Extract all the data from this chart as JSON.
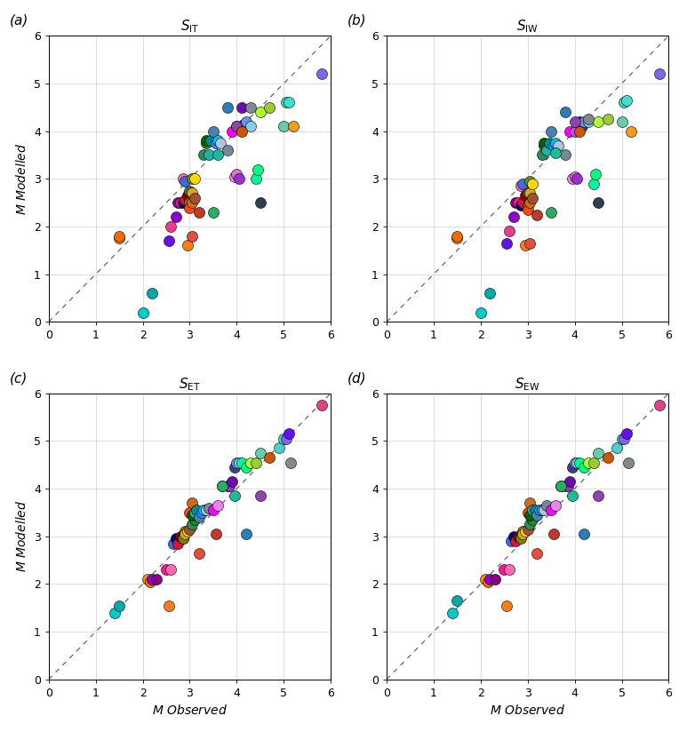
{
  "titles": [
    "$\\mathit{S}_{\\mathrm{IT}}$",
    "$\\mathit{S}_{\\mathrm{IW}}$",
    "$\\mathit{S}_{\\mathrm{ET}}$",
    "$\\mathit{S}_{\\mathrm{EW}}$"
  ],
  "panel_labels": [
    "(a)",
    "(b)",
    "(c)",
    "(d)"
  ],
  "xlabel": "$\\mathit{M}$ Observed",
  "ylabel": "$\\mathit{M}$ Modelled",
  "xlim": [
    0,
    6
  ],
  "ylim": [
    0,
    6
  ],
  "xticks": [
    0,
    1,
    2,
    3,
    4,
    5,
    6
  ],
  "yticks": [
    0,
    1,
    2,
    3,
    4,
    5,
    6
  ],
  "marker_size": 75,
  "color_list": [
    "#00CCCC",
    "#00AAAA",
    "#FF8C00",
    "#FF6600",
    "#9400D3",
    "#8B008B",
    "#FF1493",
    "#FF69B4",
    "#4169E1",
    "#000080",
    "#DC143C",
    "#8B0000",
    "#556B2F",
    "#6B8E23",
    "#808000",
    "#DAA520",
    "#FFD700",
    "#FF4500",
    "#D2691E",
    "#A0522D",
    "#2E8B57",
    "#228B22",
    "#006400",
    "#20B2AA",
    "#008B8B",
    "#4682B4",
    "#1E90FF",
    "#00BFFF",
    "#B0C4DE",
    "#778899",
    "#FF00FF",
    "#EE82EE",
    "#DA70D6",
    "#BA55D3",
    "#9932CC",
    "#6A0DAD",
    "#483D8B",
    "#6495ED",
    "#87CEEB",
    "#00FA9A",
    "#00FF7F",
    "#ADFF2F",
    "#9ACD32",
    "#66CDAA",
    "#48D1CC",
    "#40E0D0",
    "#7B68EE",
    "#6610F2",
    "#E83E8C",
    "#FD7E14",
    "#E74C3C",
    "#C0392B",
    "#27AE60",
    "#1ABC9C",
    "#2980B9",
    "#8E44AD",
    "#D35400",
    "#7F8C8D",
    "#2C3E50",
    "#F39C12",
    "#16A085",
    "#1E8449",
    "#145A32",
    "#1A5276",
    "#4A235A",
    "#6E2F1A",
    "#B7950B",
    "#784212",
    "#1B4F72",
    "#943126",
    "#1D8348",
    "#117A65",
    "#BDC3C7",
    "#85929E",
    "#5D6D7E",
    "#CD853F",
    "#DEB887",
    "#F4A460",
    "#BC8F8F",
    "#FF7F50"
  ],
  "panel_a_x": [
    2.0,
    2.2,
    1.5,
    1.5,
    2.7,
    2.75,
    2.8,
    2.85,
    2.9,
    2.85,
    2.9,
    2.95,
    3.0,
    3.05,
    3.0,
    3.05,
    3.1,
    3.0,
    3.05,
    3.1,
    3.3,
    3.35,
    3.35,
    3.4,
    3.45,
    3.5,
    3.55,
    3.6,
    3.65,
    3.8,
    3.9,
    3.95,
    4.0,
    4.0,
    4.05,
    4.1,
    4.15,
    4.2,
    4.3,
    4.4,
    4.45,
    4.5,
    4.7,
    5.0,
    5.05,
    5.1,
    5.8,
    2.55,
    2.6,
    2.95,
    3.05,
    3.2,
    3.5,
    3.6,
    3.8,
    4.0,
    4.1,
    4.3,
    4.5,
    5.2
  ],
  "panel_a_y": [
    0.2,
    0.6,
    1.75,
    1.8,
    2.2,
    2.5,
    2.5,
    3.0,
    2.95,
    2.5,
    2.55,
    2.65,
    2.75,
    3.0,
    2.5,
    2.7,
    3.0,
    2.4,
    2.5,
    2.6,
    3.5,
    3.75,
    3.8,
    3.5,
    3.8,
    4.0,
    3.75,
    3.8,
    3.75,
    3.6,
    4.0,
    3.05,
    3.1,
    4.1,
    3.0,
    4.5,
    4.15,
    4.2,
    4.1,
    3.0,
    3.2,
    4.4,
    4.5,
    4.1,
    4.6,
    4.6,
    5.2,
    1.7,
    2.0,
    1.6,
    1.8,
    2.3,
    2.3,
    3.5,
    4.5,
    4.1,
    4.0,
    4.5,
    2.5,
    4.1
  ],
  "panel_b_x": [
    2.0,
    2.2,
    1.5,
    1.5,
    2.7,
    2.75,
    2.8,
    2.85,
    2.9,
    2.85,
    2.9,
    2.95,
    3.0,
    3.05,
    3.0,
    3.05,
    3.1,
    3.0,
    3.05,
    3.1,
    3.3,
    3.35,
    3.35,
    3.4,
    3.45,
    3.5,
    3.55,
    3.6,
    3.65,
    3.8,
    3.9,
    3.95,
    4.0,
    4.0,
    4.05,
    4.1,
    4.15,
    4.2,
    4.3,
    4.4,
    4.45,
    4.5,
    4.7,
    5.0,
    5.05,
    5.1,
    5.8,
    2.55,
    2.6,
    2.95,
    3.05,
    3.2,
    3.5,
    3.6,
    3.8,
    4.0,
    4.1,
    4.3,
    4.5,
    5.2
  ],
  "panel_b_y": [
    0.2,
    0.6,
    1.75,
    1.8,
    2.2,
    2.5,
    2.5,
    2.85,
    2.9,
    2.45,
    2.5,
    2.65,
    2.7,
    2.95,
    2.45,
    2.7,
    2.9,
    2.35,
    2.5,
    2.6,
    3.5,
    3.7,
    3.75,
    3.6,
    3.75,
    4.0,
    3.7,
    3.75,
    3.7,
    3.5,
    4.0,
    3.0,
    3.05,
    4.0,
    3.0,
    4.2,
    4.1,
    4.2,
    4.2,
    2.9,
    3.1,
    4.2,
    4.25,
    4.2,
    4.6,
    4.65,
    5.2,
    1.65,
    1.9,
    1.6,
    1.65,
    2.25,
    2.3,
    3.55,
    4.4,
    4.2,
    4.0,
    4.25,
    2.5,
    4.0
  ],
  "panel_c_x": [
    1.4,
    1.5,
    2.1,
    2.15,
    2.2,
    2.3,
    2.5,
    2.6,
    2.65,
    2.7,
    2.75,
    2.8,
    2.85,
    2.9,
    2.85,
    2.9,
    2.95,
    3.0,
    3.05,
    3.0,
    3.05,
    3.1,
    3.05,
    3.1,
    3.15,
    3.2,
    3.25,
    3.3,
    3.35,
    3.4,
    3.5,
    3.6,
    3.7,
    3.8,
    3.85,
    3.9,
    3.95,
    4.0,
    4.05,
    4.1,
    4.2,
    4.3,
    4.4,
    4.5,
    4.9,
    5.0,
    5.05,
    5.1,
    5.8,
    2.55,
    3.2,
    3.55,
    3.7,
    3.95,
    4.2,
    4.5,
    4.7,
    5.15
  ],
  "panel_c_y": [
    1.4,
    1.55,
    2.1,
    2.05,
    2.1,
    2.1,
    2.3,
    2.3,
    2.85,
    2.95,
    2.85,
    3.0,
    2.95,
    3.1,
    2.95,
    3.05,
    3.1,
    3.5,
    3.7,
    3.15,
    3.25,
    3.35,
    3.45,
    3.5,
    3.55,
    3.4,
    3.5,
    3.55,
    3.55,
    3.6,
    3.55,
    3.65,
    4.05,
    4.05,
    4.05,
    4.15,
    4.45,
    4.55,
    4.55,
    4.55,
    4.45,
    4.55,
    4.55,
    4.75,
    4.85,
    5.05,
    5.05,
    5.15,
    5.75,
    1.55,
    2.65,
    3.05,
    4.05,
    3.85,
    3.05,
    3.85,
    4.65,
    4.55
  ],
  "panel_d_x": [
    1.4,
    1.5,
    2.1,
    2.15,
    2.2,
    2.3,
    2.5,
    2.6,
    2.65,
    2.7,
    2.75,
    2.8,
    2.85,
    2.9,
    2.85,
    2.9,
    2.95,
    3.0,
    3.05,
    3.0,
    3.05,
    3.1,
    3.05,
    3.1,
    3.15,
    3.2,
    3.25,
    3.3,
    3.35,
    3.4,
    3.5,
    3.6,
    3.7,
    3.8,
    3.85,
    3.9,
    3.95,
    4.0,
    4.05,
    4.1,
    4.2,
    4.3,
    4.4,
    4.5,
    4.9,
    5.0,
    5.05,
    5.1,
    5.8,
    2.55,
    3.2,
    3.55,
    3.7,
    3.95,
    4.2,
    4.5,
    4.7,
    5.15
  ],
  "panel_d_y": [
    1.4,
    1.65,
    2.1,
    2.05,
    2.1,
    2.1,
    2.3,
    2.3,
    2.9,
    3.0,
    2.9,
    3.0,
    3.0,
    3.1,
    2.95,
    3.05,
    3.1,
    3.5,
    3.7,
    3.15,
    3.25,
    3.35,
    3.45,
    3.55,
    3.55,
    3.45,
    3.55,
    3.55,
    3.55,
    3.65,
    3.55,
    3.65,
    4.05,
    4.05,
    4.05,
    4.15,
    4.45,
    4.55,
    4.55,
    4.55,
    4.45,
    4.55,
    4.55,
    4.75,
    4.85,
    5.05,
    5.05,
    5.15,
    5.75,
    1.55,
    2.65,
    3.05,
    4.05,
    3.85,
    3.05,
    3.85,
    4.65,
    4.55
  ]
}
